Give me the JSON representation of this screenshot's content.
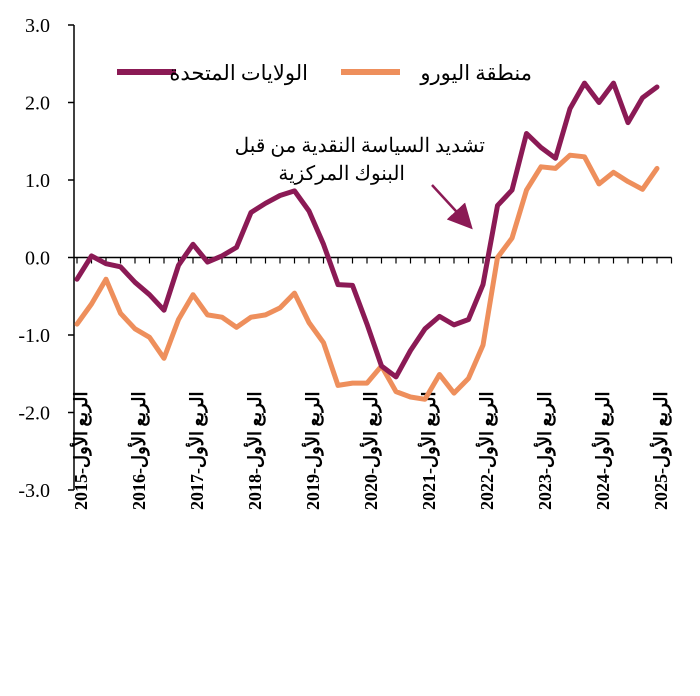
{
  "chart_data": {
    "type": "line",
    "title": "",
    "xlabel": "",
    "ylabel": "",
    "ylim": [
      -3.0,
      3.0
    ],
    "yticks": [
      "3.0",
      "2.0",
      "1.0",
      "0.0",
      "-1.0",
      "-2.0",
      "-3.0"
    ],
    "ytick_values": [
      3,
      2,
      1,
      0,
      -1,
      -2,
      -3
    ],
    "grid": false,
    "legend_position": "top",
    "x_tick_labels": [
      "الربع الأول-2015",
      "الربع الأول-2016",
      "الربع الأول-2017",
      "الربع الأول-2018",
      "الربع الأول-2019",
      "الربع الأول-2020",
      "الربع الأول-2021",
      "الربع الأول-2022",
      "الربع الأول-2023",
      "الربع الأول-2024",
      "الربع الأول-2025"
    ],
    "x_tick_index": [
      0,
      4,
      8,
      12,
      16,
      20,
      24,
      28,
      32,
      36,
      40
    ],
    "x_count": 42,
    "series": [
      {
        "name": "الولايات المتحدة",
        "color": "#8B1A55",
        "values": [
          -0.28,
          0.02,
          -0.08,
          -0.12,
          -0.32,
          -0.48,
          -0.68,
          -0.1,
          0.17,
          -0.06,
          0.02,
          0.13,
          0.58,
          0.7,
          0.8,
          0.86,
          0.6,
          0.17,
          -0.35,
          -0.36,
          -0.86,
          -1.4,
          -1.54,
          -1.2,
          -0.92,
          -0.76,
          -0.87,
          -0.8,
          -0.35,
          0.67,
          0.87,
          1.6,
          1.42,
          1.28,
          1.92,
          2.25,
          2.0,
          2.25,
          1.74,
          2.06,
          2.2
        ]
      },
      {
        "name": "منطقة اليورو",
        "color": "#EE8F5C",
        "values": [
          -0.86,
          -0.6,
          -0.28,
          -0.72,
          -0.92,
          -1.03,
          -1.3,
          -0.8,
          -0.48,
          -0.74,
          -0.77,
          -0.9,
          -0.77,
          -0.74,
          -0.65,
          -0.46,
          -0.84,
          -1.1,
          -1.65,
          -1.62,
          -1.62,
          -1.4,
          -1.73,
          -1.8,
          -1.83,
          -1.51,
          -1.75,
          -1.56,
          -1.13,
          0.0,
          0.25,
          0.87,
          1.17,
          1.15,
          1.32,
          1.3,
          0.95,
          1.1,
          0.98,
          0.88,
          1.15
        ]
      }
    ],
    "annotations": [
      {
        "text_line1": "تشديد السياسة النقدية من قبل",
        "text_line2": "البنوك المركزية"
      }
    ]
  }
}
